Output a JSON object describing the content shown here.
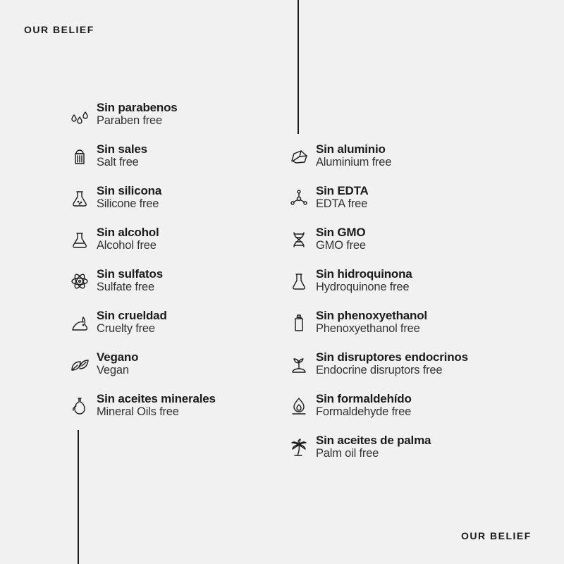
{
  "brand": {
    "top_label": "OUR BELIEF",
    "bottom_label": "OUR BELIEF"
  },
  "left_items": [
    {
      "title": "Sin parabenos",
      "subtitle": "Paraben free",
      "icon": "drops-icon"
    },
    {
      "title": "Sin sales",
      "subtitle": "Salt free",
      "icon": "salt-shaker-icon"
    },
    {
      "title": "Sin silicona",
      "subtitle": "Silicone free",
      "icon": "flask-dots-icon"
    },
    {
      "title": "Sin alcohol",
      "subtitle": "Alcohol free",
      "icon": "flask-icon"
    },
    {
      "title": "Sin sulfatos",
      "subtitle": "Sulfate free",
      "icon": "atom-icon"
    },
    {
      "title": "Sin crueldad",
      "subtitle": "Cruelty free",
      "icon": "rabbit-icon"
    },
    {
      "title": "Vegano",
      "subtitle": "Vegan",
      "icon": "leaves-icon"
    },
    {
      "title": "Sin aceites minerales",
      "subtitle": "Mineral Oils free",
      "icon": "oil-bottle-icon"
    }
  ],
  "right_items": [
    {
      "title": "Sin aluminio",
      "subtitle": "Aluminium free",
      "icon": "rock-icon"
    },
    {
      "title": "Sin EDTA",
      "subtitle": "EDTA free",
      "icon": "molecule-icon"
    },
    {
      "title": "Sin GMO",
      "subtitle": "GMO free",
      "icon": "dna-icon"
    },
    {
      "title": "Sin hidroquinona",
      "subtitle": "Hydroquinone free",
      "icon": "beaker-icon"
    },
    {
      "title": "Sin phenoxyethanol",
      "subtitle": "Phenoxyethanol free",
      "icon": "bottle-icon"
    },
    {
      "title": "Sin disruptores endocrinos",
      "subtitle": "Endocrine disruptors free",
      "icon": "sprout-icon"
    },
    {
      "title": "Sin formaldehído",
      "subtitle": "Formaldehyde free",
      "icon": "flame-icon"
    },
    {
      "title": "Sin aceites de palma",
      "subtitle": "Palm oil free",
      "icon": "palm-tree-icon"
    }
  ],
  "colors": {
    "background": "#f1f1f1",
    "text": "#1b1b1b"
  }
}
